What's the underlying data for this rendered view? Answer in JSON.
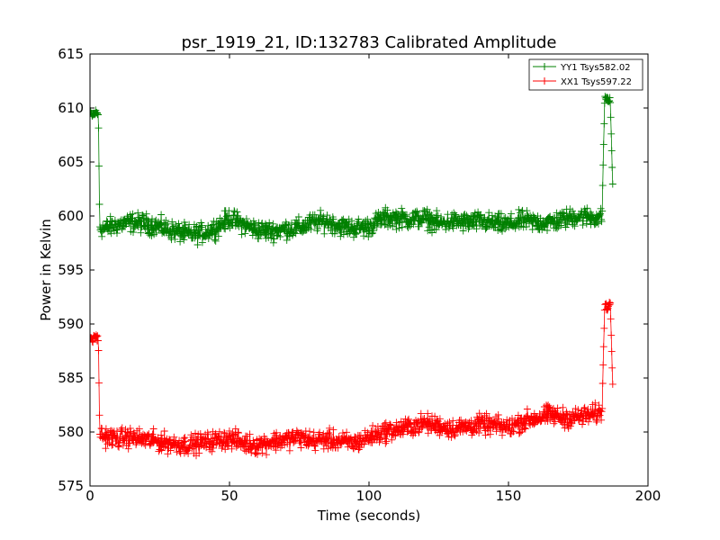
{
  "chart_data": {
    "type": "scatter",
    "title": "psr_1919_21, ID:132783 Calibrated Amplitude",
    "xlabel": "Time (seconds)",
    "ylabel": "Power in Kelvin",
    "xlim": [
      0,
      200
    ],
    "ylim": [
      575,
      615
    ],
    "xticks": [
      "0",
      "50",
      "100",
      "150",
      "200"
    ],
    "yticks": [
      "575",
      "580",
      "585",
      "590",
      "595",
      "600",
      "605",
      "610",
      "615"
    ],
    "grid": false,
    "legend_position": "top-right",
    "marker": "plus",
    "series": [
      {
        "name": "YY1 Tsys582.02",
        "color": "#008000",
        "x": [
          0,
          1,
          2,
          3,
          3.5,
          5,
          10,
          15,
          20,
          25,
          30,
          35,
          40,
          45,
          50,
          55,
          60,
          65,
          70,
          75,
          80,
          85,
          90,
          95,
          100,
          105,
          110,
          115,
          120,
          125,
          130,
          135,
          140,
          145,
          150,
          155,
          160,
          165,
          170,
          175,
          180,
          183.5,
          184.5,
          185.5,
          186.5,
          187.5
        ],
        "y": [
          609.5,
          609.3,
          609.6,
          609.4,
          599.0,
          598.8,
          599.2,
          599.4,
          599.3,
          599.0,
          598.6,
          598.3,
          598.4,
          598.9,
          599.8,
          599.2,
          598.7,
          598.6,
          598.8,
          598.9,
          599.4,
          599.5,
          599.0,
          598.9,
          599.0,
          599.8,
          599.8,
          599.7,
          599.8,
          599.3,
          599.5,
          599.4,
          599.5,
          599.3,
          599.2,
          599.6,
          599.4,
          599.4,
          599.7,
          600.0,
          599.9,
          599.8,
          611.0,
          610.8,
          610.6,
          601.5
        ]
      },
      {
        "name": "XX1 Tsys597.22",
        "color": "#ff0000",
        "x": [
          0,
          1,
          2,
          3,
          3.5,
          5,
          10,
          15,
          20,
          25,
          30,
          35,
          40,
          45,
          50,
          55,
          60,
          65,
          70,
          75,
          80,
          85,
          90,
          95,
          100,
          105,
          110,
          115,
          120,
          125,
          130,
          135,
          140,
          145,
          150,
          155,
          160,
          165,
          170,
          175,
          180,
          183.5,
          184.5,
          185.5,
          186.5,
          187.5
        ],
        "y": [
          588.8,
          588.5,
          588.9,
          588.6,
          579.8,
          579.6,
          579.4,
          579.5,
          579.3,
          579.1,
          578.9,
          578.8,
          579.0,
          579.2,
          579.4,
          579.0,
          578.8,
          579.1,
          579.3,
          579.5,
          579.2,
          579.3,
          579.1,
          579.0,
          579.5,
          580.0,
          580.2,
          580.5,
          580.8,
          580.6,
          580.3,
          580.5,
          580.7,
          580.6,
          580.4,
          581.0,
          581.3,
          581.6,
          581.3,
          581.4,
          581.6,
          581.8,
          591.8,
          591.5,
          591.9,
          583.0
        ]
      }
    ]
  }
}
